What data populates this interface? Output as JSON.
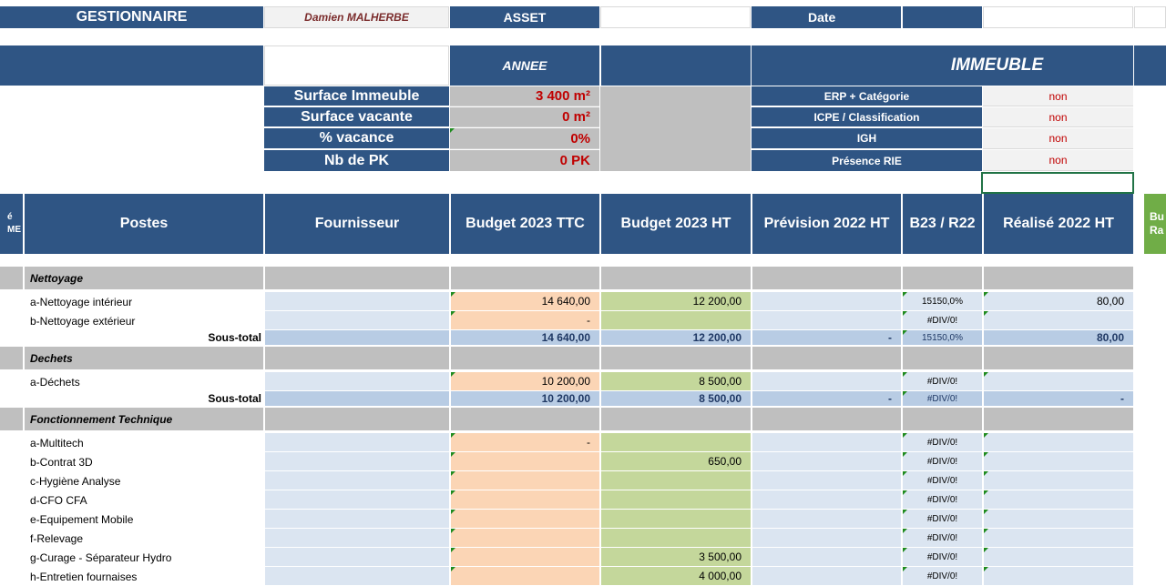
{
  "header": {
    "gestionnaire_label": "GESTIONNAIRE",
    "gestionnaire_value": "Damien MALHERBE",
    "asset_label": "ASSET",
    "asset_value": "",
    "date_label": "Date",
    "date_value": ""
  },
  "section_headers": {
    "annee": "ANNEE",
    "immeuble": "IMMEUBLE"
  },
  "metrics": [
    {
      "label": "Surface Immeuble",
      "value": "3 400 m²"
    },
    {
      "label": "Surface vacante",
      "value": "0 m²"
    },
    {
      "label": "% vacance",
      "value": "0%"
    },
    {
      "label": "Nb de PK",
      "value": "0 PK"
    }
  ],
  "building_info": [
    {
      "label": "ERP + Catégorie",
      "value": "non"
    },
    {
      "label": "ICPE / Classification",
      "value": "non"
    },
    {
      "label": "IGH",
      "value": "non"
    },
    {
      "label": "Présence RIE",
      "value": "non"
    }
  ],
  "columns": {
    "left_cut": "é\nME",
    "postes": "Postes",
    "fournisseur": "Fournisseur",
    "budget_ttc": "Budget 2023 TTC",
    "budget_ht": "Budget 2023 HT",
    "prevision": "Prévision 2022 HT",
    "ratio": "B23 / R22",
    "realise": "Réalisé 2022 HT",
    "right_cut": "Bu\nRa"
  },
  "sections": [
    {
      "title": "Nettoyage",
      "rows": [
        {
          "poste": "a-Nettoyage intérieur",
          "ttc": "14 640,00",
          "ht": "12 200,00",
          "prev": "",
          "ratio": "15150,0%",
          "real": "80,00"
        },
        {
          "poste": "b-Nettoyage extérieur",
          "ttc": "-",
          "ht": "",
          "prev": "",
          "ratio": "#DIV/0!",
          "real": ""
        }
      ],
      "subtotal": {
        "label": "Sous-total",
        "ttc": "14 640,00",
        "ht": "12 200,00",
        "prev": "-",
        "ratio": "15150,0%",
        "real": "80,00"
      }
    },
    {
      "title": "Dechets",
      "rows": [
        {
          "poste": "a-Déchets",
          "ttc": "10 200,00",
          "ht": "8 500,00",
          "prev": "",
          "ratio": "#DIV/0!",
          "real": ""
        }
      ],
      "subtotal": {
        "label": "Sous-total",
        "ttc": "10 200,00",
        "ht": "8 500,00",
        "prev": "-",
        "ratio": "#DIV/0!",
        "real": "-"
      }
    },
    {
      "title": "Fonctionnement Technique",
      "rows": [
        {
          "poste": "a-Multitech",
          "ttc": "-",
          "ht": "",
          "prev": "",
          "ratio": "#DIV/0!",
          "real": ""
        },
        {
          "poste": "b-Contrat 3D",
          "ttc": "",
          "ht": "650,00",
          "prev": "",
          "ratio": "#DIV/0!",
          "real": ""
        },
        {
          "poste": "c-Hygiène Analyse",
          "ttc": "",
          "ht": "",
          "prev": "",
          "ratio": "#DIV/0!",
          "real": ""
        },
        {
          "poste": "d-CFO CFA",
          "ttc": "",
          "ht": "",
          "prev": "",
          "ratio": "#DIV/0!",
          "real": ""
        },
        {
          "poste": "e-Equipement Mobile",
          "ttc": "",
          "ht": "",
          "prev": "",
          "ratio": "#DIV/0!",
          "real": ""
        },
        {
          "poste": "f-Relevage",
          "ttc": "",
          "ht": "",
          "prev": "",
          "ratio": "#DIV/0!",
          "real": ""
        },
        {
          "poste": "g-Curage - Séparateur Hydro",
          "ttc": "",
          "ht": "3 500,00",
          "prev": "",
          "ratio": "#DIV/0!",
          "real": ""
        },
        {
          "poste": "h-Entretien fournaises",
          "ttc": "",
          "ht": "4 000,00",
          "prev": "",
          "ratio": "#DIV/0!",
          "real": ""
        }
      ]
    }
  ],
  "colors": {
    "header_navy": "#2f5584",
    "section_grey": "#bfbfbf",
    "cell_blue": "#dbe5f1",
    "cell_peach": "#fbd5b5",
    "cell_green": "#c4d79b",
    "subtotal_blue": "#b8cce4",
    "accent_green": "#70ad47",
    "value_red": "#c00000"
  }
}
